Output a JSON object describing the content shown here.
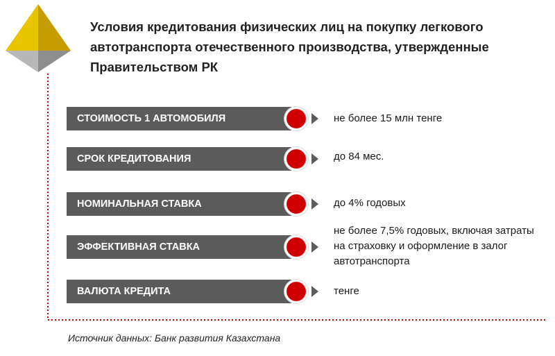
{
  "title": "Условия кредитования физических лиц на покупку легкового автотранспорта отечественного производства, утвержденные Правительством РК",
  "rows": [
    {
      "label": "СТОИМОСТЬ 1 АВТОМОБИЛЯ",
      "value": "не более 15 млн тенге"
    },
    {
      "label": "СРОК КРЕДИТОВАНИЯ",
      "value": "до 84 мес."
    },
    {
      "label": "НОМИНАЛЬНАЯ СТАВКА",
      "value": "до 4% годовых"
    },
    {
      "label": "ЭФФЕКТИВНАЯ СТАВКА",
      "value": "не более 7,5% годовых, включая затраты на страховку и оформление в залог автотранспорта"
    },
    {
      "label": "ВАЛЮТА КРЕДИТА",
      "value": "тенге"
    }
  ],
  "source": "Источник данных:  Банк развития Казахстана",
  "colors": {
    "bar": "#5b5b5b",
    "dot": "#d10000",
    "frame": "#c00000",
    "pyramid_gold": "#e8b400"
  }
}
